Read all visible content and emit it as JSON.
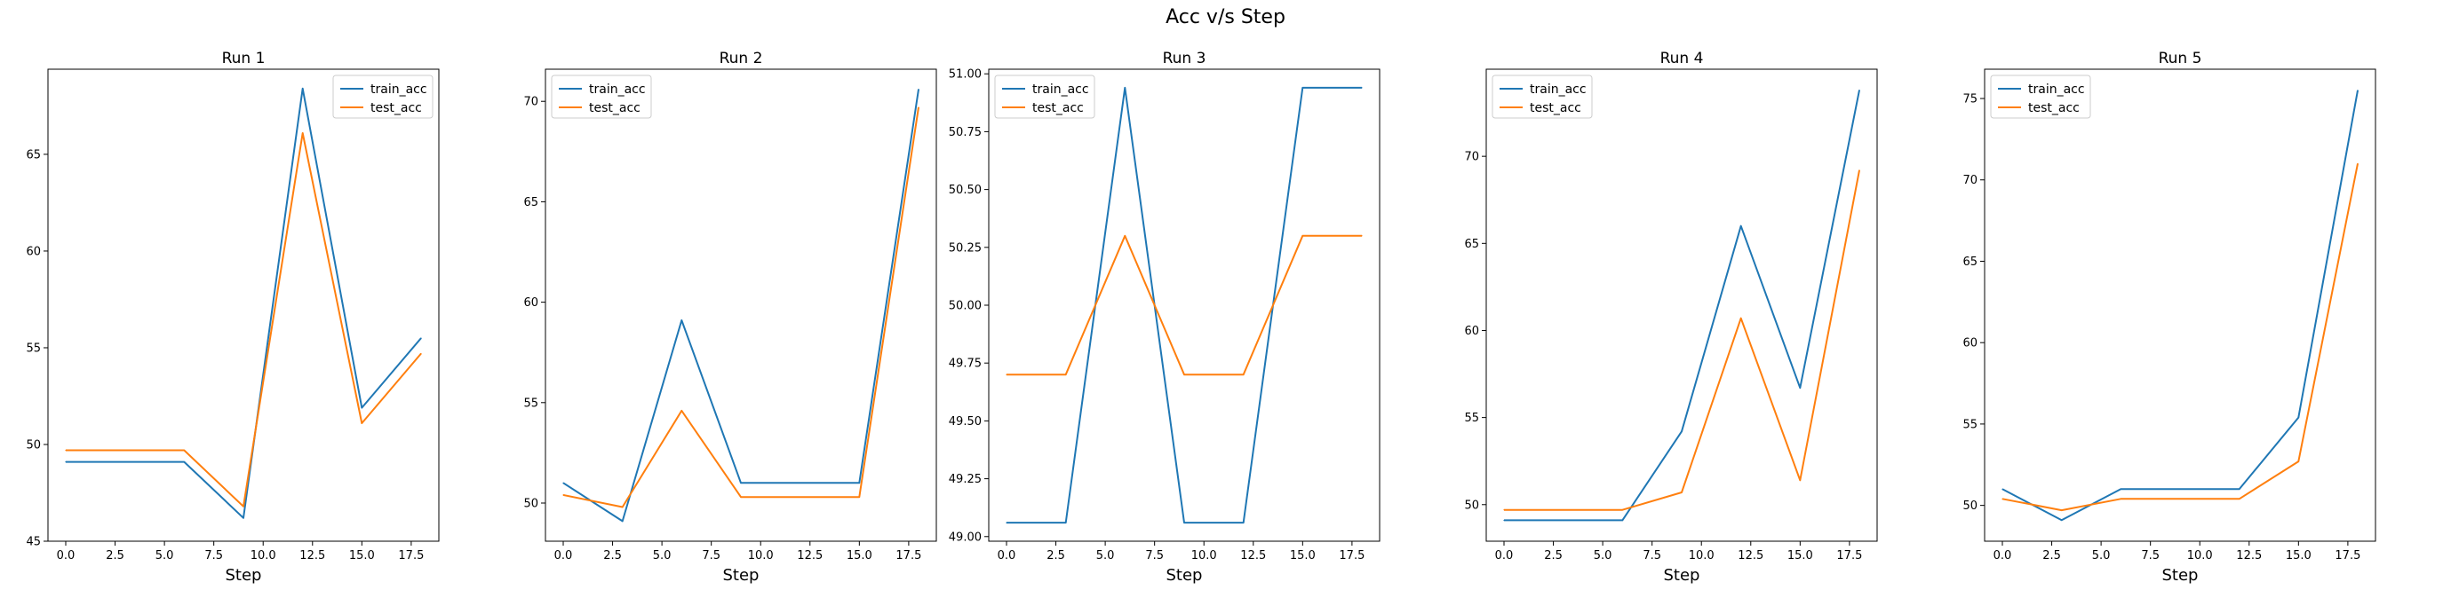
{
  "figure": {
    "title": "Acc v/s Step"
  },
  "colors": {
    "train": "#1f77b4",
    "test": "#ff7f0e"
  },
  "chart_data": [
    {
      "type": "line",
      "title": "Run 1",
      "xlabel": "Step",
      "ylabel": "",
      "xlim": [
        -0.9,
        18.9
      ],
      "ylim": [
        45,
        69.4
      ],
      "xticks": [
        0.0,
        2.5,
        5.0,
        7.5,
        10.0,
        12.5,
        15.0,
        17.5
      ],
      "xtick_labels": [
        "0.0",
        "2.5",
        "5.0",
        "7.5",
        "10.0",
        "12.5",
        "15.0",
        "17.5"
      ],
      "yticks": [
        45,
        50,
        55,
        60,
        65
      ],
      "ytick_labels": [
        "45",
        "50",
        "55",
        "60",
        "65"
      ],
      "legend": "top-right",
      "grid": false,
      "x": [
        0,
        3,
        6,
        9,
        12,
        15,
        18
      ],
      "series": [
        {
          "name": "train_acc",
          "values": [
            49.1,
            49.1,
            49.1,
            46.2,
            68.4,
            51.9,
            55.5
          ]
        },
        {
          "name": "test_acc",
          "values": [
            49.7,
            49.7,
            49.7,
            46.8,
            66.1,
            51.1,
            54.7
          ]
        }
      ]
    },
    {
      "type": "line",
      "title": "Run 2",
      "xlabel": "Step",
      "ylabel": "",
      "xlim": [
        -0.9,
        18.9
      ],
      "ylim": [
        48.1,
        71.6
      ],
      "xticks": [
        0.0,
        2.5,
        5.0,
        7.5,
        10.0,
        12.5,
        15.0,
        17.5
      ],
      "xtick_labels": [
        "0.0",
        "2.5",
        "5.0",
        "7.5",
        "10.0",
        "12.5",
        "15.0",
        "17.5"
      ],
      "yticks": [
        50,
        55,
        60,
        65,
        70
      ],
      "ytick_labels": [
        "50",
        "55",
        "60",
        "65",
        "70"
      ],
      "legend": "top-left",
      "grid": false,
      "x": [
        0,
        3,
        6,
        9,
        12,
        15,
        18
      ],
      "series": [
        {
          "name": "train_acc",
          "values": [
            51.0,
            49.1,
            59.1,
            51.0,
            51.0,
            51.0,
            70.6
          ]
        },
        {
          "name": "test_acc",
          "values": [
            50.4,
            49.8,
            54.6,
            50.3,
            50.3,
            50.3,
            69.7
          ]
        }
      ]
    },
    {
      "type": "line",
      "title": "Run 3",
      "xlabel": "Step",
      "ylabel": "",
      "xlim": [
        -0.9,
        18.9
      ],
      "ylim": [
        48.98,
        51.02
      ],
      "xticks": [
        0.0,
        2.5,
        5.0,
        7.5,
        10.0,
        12.5,
        15.0,
        17.5
      ],
      "xtick_labels": [
        "0.0",
        "2.5",
        "5.0",
        "7.5",
        "10.0",
        "12.5",
        "15.0",
        "17.5"
      ],
      "yticks": [
        49.0,
        49.25,
        49.5,
        49.75,
        50.0,
        50.25,
        50.5,
        50.75,
        51.0
      ],
      "ytick_labels": [
        "49.00",
        "49.25",
        "49.50",
        "49.75",
        "50.00",
        "50.25",
        "50.50",
        "50.75",
        "51.00"
      ],
      "legend": "top-left",
      "grid": false,
      "x": [
        0,
        3,
        6,
        9,
        12,
        15,
        18
      ],
      "series": [
        {
          "name": "train_acc",
          "values": [
            49.06,
            49.06,
            50.94,
            49.06,
            49.06,
            50.94,
            50.94
          ]
        },
        {
          "name": "test_acc",
          "values": [
            49.7,
            49.7,
            50.3,
            49.7,
            49.7,
            50.3,
            50.3
          ]
        }
      ]
    },
    {
      "type": "line",
      "title": "Run 4",
      "xlabel": "Step",
      "ylabel": "",
      "xlim": [
        -0.9,
        18.9
      ],
      "ylim": [
        47.9,
        75.0
      ],
      "xticks": [
        0.0,
        2.5,
        5.0,
        7.5,
        10.0,
        12.5,
        15.0,
        17.5
      ],
      "xtick_labels": [
        "0.0",
        "2.5",
        "5.0",
        "7.5",
        "10.0",
        "12.5",
        "15.0",
        "17.5"
      ],
      "yticks": [
        50,
        55,
        60,
        65,
        70
      ],
      "ytick_labels": [
        "50",
        "55",
        "60",
        "65",
        "70"
      ],
      "legend": "top-left",
      "grid": false,
      "x": [
        0,
        3,
        6,
        9,
        12,
        15,
        18
      ],
      "series": [
        {
          "name": "train_acc",
          "values": [
            49.1,
            49.1,
            49.1,
            54.2,
            66.0,
            56.7,
            73.8
          ]
        },
        {
          "name": "test_acc",
          "values": [
            49.7,
            49.7,
            49.7,
            50.7,
            60.7,
            51.4,
            69.2
          ]
        }
      ]
    },
    {
      "type": "line",
      "title": "Run 5",
      "xlabel": "Step",
      "ylabel": "",
      "xlim": [
        -0.9,
        18.9
      ],
      "ylim": [
        47.8,
        76.8
      ],
      "xticks": [
        0.0,
        2.5,
        5.0,
        7.5,
        10.0,
        12.5,
        15.0,
        17.5
      ],
      "xtick_labels": [
        "0.0",
        "2.5",
        "5.0",
        "7.5",
        "10.0",
        "12.5",
        "15.0",
        "17.5"
      ],
      "yticks": [
        50,
        55,
        60,
        65,
        70,
        75
      ],
      "ytick_labels": [
        "50",
        "55",
        "60",
        "65",
        "70",
        "75"
      ],
      "legend": "top-left",
      "grid": false,
      "x": [
        0,
        3,
        6,
        9,
        12,
        15,
        18
      ],
      "series": [
        {
          "name": "train_acc",
          "values": [
            51.0,
            49.1,
            51.0,
            51.0,
            51.0,
            55.4,
            75.5
          ]
        },
        {
          "name": "test_acc",
          "values": [
            50.4,
            49.7,
            50.4,
            50.4,
            50.4,
            52.7,
            71.0
          ]
        }
      ]
    }
  ]
}
